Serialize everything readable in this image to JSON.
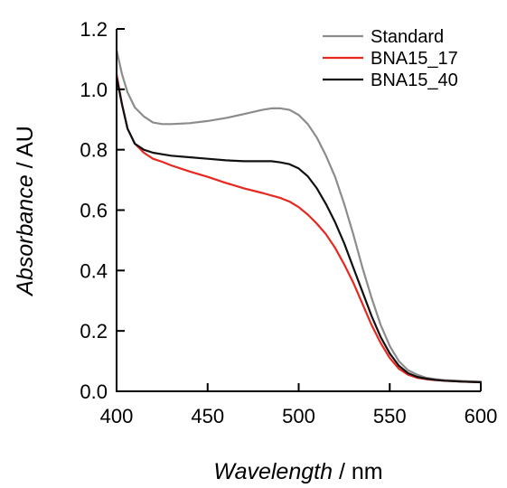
{
  "chart_data": {
    "type": "line",
    "xlabel_italic": "Wavelength",
    "xlabel_unit": " / nm",
    "ylabel_italic": "Absorbance",
    "ylabel_unit": " / AU",
    "xlim": [
      400,
      600
    ],
    "ylim": [
      0,
      1.2
    ],
    "xticks": [
      "400",
      "450",
      "500",
      "550",
      "600"
    ],
    "yticks": [
      "0.0",
      "0.2",
      "0.4",
      "0.6",
      "0.8",
      "1.0",
      "1.2"
    ],
    "grid": false,
    "legend_position": "top-right",
    "series": [
      {
        "name": "Standard",
        "color": "#8c8c8c",
        "x": [
          400,
          403,
          406,
          410,
          415,
          420,
          425,
          430,
          440,
          450,
          460,
          470,
          480,
          485,
          490,
          495,
          500,
          505,
          510,
          515,
          520,
          525,
          530,
          535,
          540,
          545,
          550,
          555,
          560,
          565,
          570,
          575,
          580,
          590,
          600
        ],
        "y": [
          1.13,
          1.05,
          0.99,
          0.94,
          0.91,
          0.89,
          0.885,
          0.885,
          0.888,
          0.895,
          0.905,
          0.918,
          0.932,
          0.937,
          0.937,
          0.932,
          0.915,
          0.885,
          0.84,
          0.78,
          0.71,
          0.62,
          0.52,
          0.41,
          0.31,
          0.22,
          0.15,
          0.1,
          0.07,
          0.055,
          0.045,
          0.04,
          0.037,
          0.034,
          0.032
        ]
      },
      {
        "name": "BNA15_17",
        "color": "#e8271f",
        "x": [
          400,
          403,
          406,
          410,
          415,
          420,
          425,
          430,
          440,
          450,
          460,
          470,
          480,
          490,
          495,
          500,
          505,
          510,
          515,
          520,
          525,
          530,
          535,
          540,
          545,
          550,
          555,
          560,
          565,
          570,
          575,
          580,
          590,
          600
        ],
        "y": [
          1.05,
          0.95,
          0.87,
          0.82,
          0.79,
          0.77,
          0.76,
          0.748,
          0.728,
          0.71,
          0.69,
          0.672,
          0.657,
          0.64,
          0.628,
          0.61,
          0.585,
          0.555,
          0.52,
          0.475,
          0.42,
          0.36,
          0.29,
          0.22,
          0.16,
          0.11,
          0.075,
          0.055,
          0.045,
          0.04,
          0.037,
          0.035,
          0.032,
          0.03
        ]
      },
      {
        "name": "BNA15_40",
        "color": "#111111",
        "x": [
          400,
          403,
          406,
          410,
          415,
          420,
          425,
          430,
          440,
          450,
          460,
          470,
          480,
          485,
          490,
          495,
          500,
          505,
          510,
          515,
          520,
          525,
          530,
          535,
          540,
          545,
          550,
          555,
          560,
          565,
          570,
          575,
          580,
          590,
          600
        ],
        "y": [
          1.04,
          0.95,
          0.87,
          0.82,
          0.8,
          0.79,
          0.785,
          0.78,
          0.775,
          0.77,
          0.765,
          0.762,
          0.762,
          0.762,
          0.758,
          0.752,
          0.738,
          0.712,
          0.672,
          0.62,
          0.56,
          0.49,
          0.41,
          0.33,
          0.25,
          0.18,
          0.125,
          0.085,
          0.06,
          0.048,
          0.042,
          0.038,
          0.035,
          0.032,
          0.03
        ]
      }
    ]
  }
}
